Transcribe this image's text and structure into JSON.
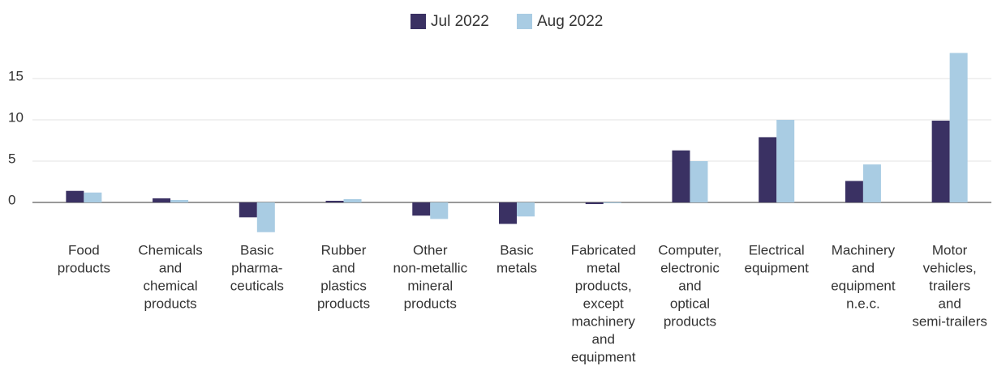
{
  "chart_data": {
    "type": "bar",
    "categories": [
      [
        "Food",
        "products"
      ],
      [
        "Chemicals",
        "and",
        "chemical",
        "products"
      ],
      [
        "Basic",
        "pharma-",
        "ceuticals"
      ],
      [
        "Rubber",
        "and",
        "plastics",
        "products"
      ],
      [
        "Other",
        "non-metallic",
        "mineral",
        "products"
      ],
      [
        "Basic",
        "metals"
      ],
      [
        "Fabricated",
        "metal",
        "products,",
        "except",
        "machinery",
        "and",
        "equipment"
      ],
      [
        "Computer,",
        "electronic",
        "and",
        "optical",
        "products"
      ],
      [
        "Electrical",
        "equipment"
      ],
      [
        "Machinery",
        "and",
        "equipment",
        "n.e.c."
      ],
      [
        "Motor",
        "vehicles,",
        "trailers",
        "and",
        "semi-trailers"
      ]
    ],
    "series": [
      {
        "name": "Jul 2022",
        "color": "#3a3163",
        "values": [
          1.4,
          0.5,
          -1.8,
          0.2,
          -1.6,
          -2.6,
          -0.2,
          6.3,
          7.9,
          2.6,
          9.9
        ]
      },
      {
        "name": "Aug 2022",
        "color": "#a9cce3",
        "values": [
          1.2,
          0.3,
          -3.6,
          0.4,
          -2.0,
          -1.7,
          -0.1,
          5.0,
          10.0,
          4.6,
          18.1
        ]
      }
    ],
    "ylim": [
      -4,
      19
    ],
    "yticks": [
      0,
      5,
      10,
      15
    ],
    "grid": true,
    "legend": "top"
  }
}
